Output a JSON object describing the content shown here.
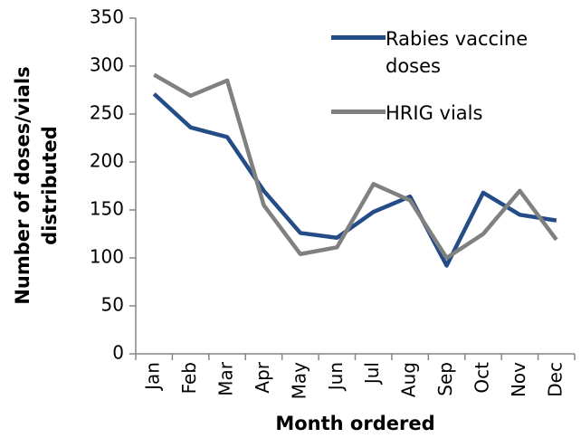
{
  "chart_data": {
    "type": "line",
    "ylabel": [
      "Number of doses/vials",
      "distributed"
    ],
    "xlabel": "Month ordered",
    "categories": [
      "Jan",
      "Feb",
      "Mar",
      "Apr",
      "May",
      "Jun",
      "Jul",
      "Aug",
      "Sep",
      "Oct",
      "Nov",
      "Dec"
    ],
    "series": [
      {
        "name": "Rabies vaccine doses",
        "color": "#244c86",
        "values": [
          271,
          236,
          226,
          170,
          126,
          121,
          148,
          164,
          92,
          168,
          145,
          139
        ]
      },
      {
        "name": "HRIG vials",
        "color": "#808080",
        "values": [
          291,
          269,
          285,
          155,
          104,
          111,
          177,
          160,
          100,
          125,
          170,
          119
        ]
      }
    ],
    "ylim": [
      0,
      350
    ],
    "yticks": [
      0,
      50,
      100,
      150,
      200,
      250,
      300,
      350
    ],
    "legend": "upper right",
    "grid": false
  }
}
